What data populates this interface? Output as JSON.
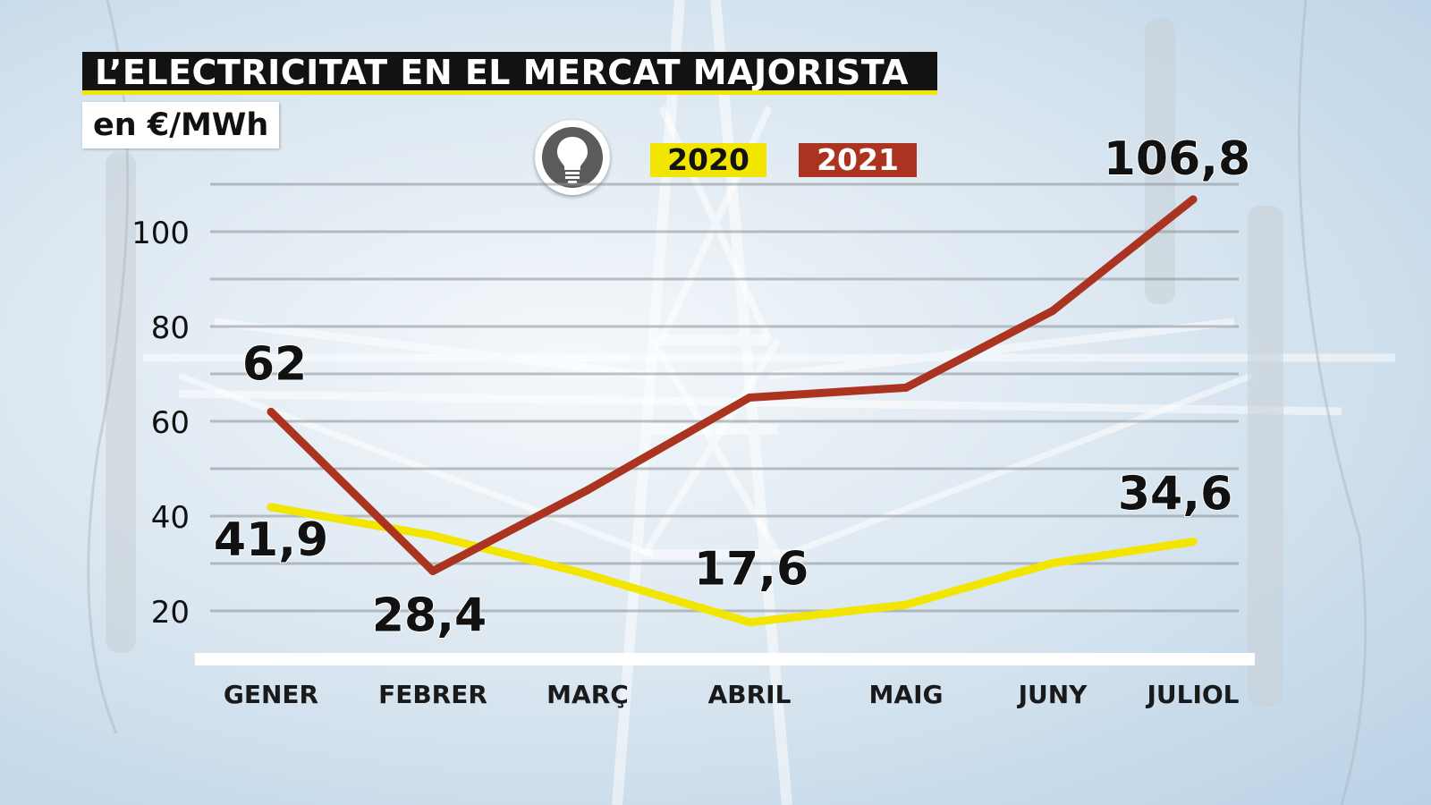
{
  "header": {
    "title": "L’ELECTRICITAT EN EL MERCAT MAJORISTA",
    "subtitle": "en €/MWh"
  },
  "icons": {
    "legend_icon": "lightbulb-icon"
  },
  "colors": {
    "series_2020": "#f2e600",
    "series_2021": "#ab3420",
    "title_bg": "#121212",
    "accent": "#f2e600"
  },
  "chart_data": {
    "type": "line",
    "title": "L’ELECTRICITAT EN EL MERCAT MAJORISTA",
    "ylabel": "en €/MWh",
    "categories": [
      "GENER",
      "FEBRER",
      "MARÇ",
      "ABRIL",
      "MAIG",
      "JUNY",
      "JULIOL"
    ],
    "ylim": [
      10,
      110
    ],
    "yticks": [
      20,
      40,
      60,
      80,
      100
    ],
    "grid": true,
    "legend_position": "top-center",
    "series": [
      {
        "name": "2020",
        "color": "#f2e600",
        "values": [
          41.9,
          35.9,
          27.7,
          17.6,
          21.3,
          30.1,
          34.6
        ],
        "labels": [
          {
            "index": 0,
            "text": "41,9"
          },
          {
            "index": 3,
            "text": "17,6"
          },
          {
            "index": 6,
            "text": "34,6"
          }
        ]
      },
      {
        "name": "2021",
        "color": "#ab3420",
        "values": [
          62,
          28.4,
          45.5,
          65.0,
          67.1,
          83.3,
          106.8
        ],
        "labels": [
          {
            "index": 0,
            "text": "62"
          },
          {
            "index": 1,
            "text": "28,4"
          },
          {
            "index": 6,
            "text": "106,8"
          }
        ]
      }
    ]
  }
}
